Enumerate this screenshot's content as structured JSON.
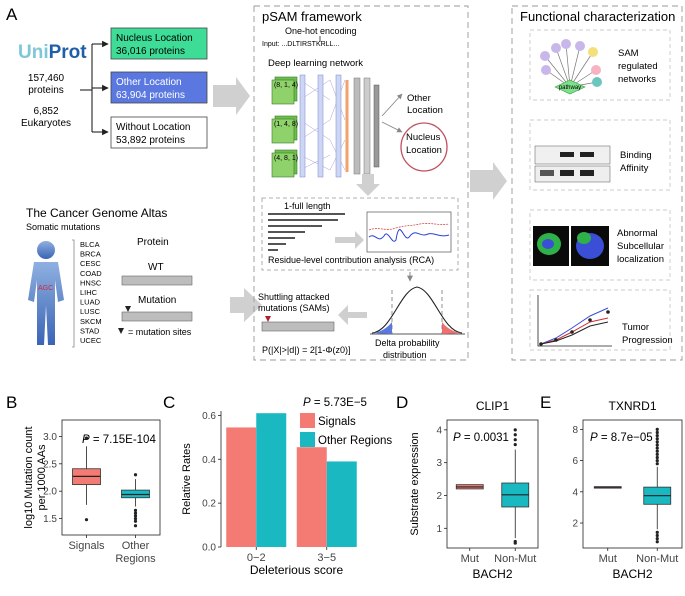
{
  "panel_labels": {
    "a": "A",
    "b": "B",
    "c": "C",
    "d": "D",
    "e": "E"
  },
  "uniprot": {
    "logo_uni": "Uni",
    "logo_prot": "Prot",
    "proteins_count": "157,460",
    "proteins_label": "proteins",
    "eukaryotes_count": "6,852",
    "eukaryotes_label": "Eukaryotes"
  },
  "locations": {
    "nucleus": {
      "name": "Nucleus Location",
      "count": "36,016 proteins",
      "color": "#3ddc97"
    },
    "other": {
      "name": "Other Location",
      "count": "63,904 proteins",
      "color": "#5b78e0"
    },
    "without": {
      "name": "Without Location",
      "count": "53,892 proteins"
    }
  },
  "psam": {
    "title": "pSAM framework",
    "onehot": "One-hot encoding",
    "input": "Input: ...DLTIRSTKRLL...",
    "dl": "Deep learning network",
    "filters": [
      "(8, 1, 4)",
      "(1, 4, 8)",
      "(4, 8, 1)"
    ],
    "out_other": [
      "Other",
      "Location"
    ],
    "out_nucleus": [
      "Nucleus",
      "Location"
    ],
    "full_length": "1-full length",
    "rca": "Residue-level contribution analysis (RCA)",
    "shuttling": [
      "Shuttling attacked",
      "mutations (SAMs)"
    ],
    "formula": "P(|X|>|d|) = 2[1-Φ(z0)]",
    "delta": [
      "Delta probability",
      "distribution"
    ]
  },
  "cancer": {
    "title": "The Cancer Genome Altas",
    "subtitle": "Somatic mutations",
    "types": [
      "BLCA",
      "BRCA",
      "CESC",
      "COAD",
      "HNSC",
      "LIHC",
      "LUAD",
      "LUSC",
      "SKCM",
      "STAD",
      "UCEC"
    ],
    "protein": "Protein",
    "wt": "WT",
    "mutation": "Mutation",
    "legend": "= mutation sites"
  },
  "functional": {
    "title": "Functional characterization",
    "pathway": "pathway",
    "items": [
      [
        "SAM",
        "regulated",
        "networks"
      ],
      [
        "Binding",
        "Affinity"
      ],
      [
        "Abnormal",
        "Subcellular",
        "localization"
      ],
      [
        "Tumor",
        "Progression"
      ]
    ]
  },
  "chart_data": [
    {
      "type": "boxplot",
      "panel": "B",
      "ylabel": [
        "log10 Mutation count",
        "per 1000 AAs"
      ],
      "pvalue": "P = 7.15E-104",
      "categories": [
        "Signals",
        [
          "Other",
          "Regions"
        ]
      ],
      "ylim": [
        1.2,
        3.3
      ],
      "yticks": [
        "1.5",
        "2.0",
        "2.5",
        "3.0"
      ],
      "boxes": [
        {
          "q1": 2.12,
          "median": 2.27,
          "q3": 2.41,
          "wmin": 1.75,
          "wmax": 2.82,
          "outliers": [
            2.97,
            1.48
          ],
          "color": "#f47b73"
        },
        {
          "q1": 1.88,
          "median": 1.94,
          "q3": 2.02,
          "wmin": 1.72,
          "wmax": 2.22,
          "outliers": [
            2.3,
            1.65,
            1.6,
            1.55,
            1.5,
            1.45,
            1.37
          ],
          "color": "#1ab9c2"
        }
      ]
    },
    {
      "type": "bar",
      "panel": "C",
      "pvalue": "P = 5.73E−5",
      "ylabel": "Relative Rates",
      "xlabel": "Deleterious score",
      "categories": [
        "0−2",
        "3−5"
      ],
      "ylim": [
        0,
        0.62
      ],
      "yticks": [
        "0.0",
        "0.2",
        "0.4",
        "0.6"
      ],
      "series": [
        {
          "name": "Signals",
          "values": [
            0.545,
            0.455
          ],
          "color": "#f47b73"
        },
        {
          "name": "Other Regions",
          "values": [
            0.61,
            0.39
          ],
          "color": "#1ab9c2"
        }
      ]
    },
    {
      "type": "boxplot",
      "panel": "D",
      "title": "CLIP1",
      "ylabel": "Substrate expression",
      "xlabel": "BACH2",
      "pvalue": "P = 0.0031",
      "categories": [
        "Mut",
        "Non-Mut"
      ],
      "ylim": [
        0.4,
        4.3
      ],
      "yticks": [
        "1",
        "2",
        "3",
        "4"
      ],
      "boxes": [
        {
          "q1": 2.2,
          "median": 2.26,
          "q3": 2.33,
          "wmin": 2.2,
          "wmax": 2.33,
          "outliers": [],
          "color": "#f47b73"
        },
        {
          "q1": 1.65,
          "median": 2.02,
          "q3": 2.38,
          "wmin": 0.7,
          "wmax": 3.4,
          "outliers": [
            3.55,
            3.7,
            3.85,
            4.0,
            0.6,
            0.55
          ],
          "color": "#1ab9c2"
        }
      ]
    },
    {
      "type": "boxplot",
      "panel": "E",
      "title": "TXNRD1",
      "ylabel": "",
      "xlabel": "BACH2",
      "pvalue": "P = 8.7e−05",
      "categories": [
        "Mut",
        "Non-Mut"
      ],
      "ylim": [
        0.4,
        8.6
      ],
      "yticks": [
        "2",
        "4",
        "6",
        "8"
      ],
      "boxes": [
        {
          "q1": 4.27,
          "median": 4.3,
          "q3": 4.33,
          "wmin": 4.27,
          "wmax": 4.33,
          "outliers": [],
          "color": "#f47b73"
        },
        {
          "q1": 3.2,
          "median": 3.75,
          "q3": 4.3,
          "wmin": 1.6,
          "wmax": 5.6,
          "outliers": [
            5.8,
            6.0,
            6.2,
            6.4,
            6.6,
            6.8,
            7.0,
            7.2,
            7.4,
            7.6,
            7.8,
            8.0,
            1.4,
            1.2,
            1.0,
            0.8
          ],
          "color": "#1ab9c2"
        }
      ]
    }
  ]
}
